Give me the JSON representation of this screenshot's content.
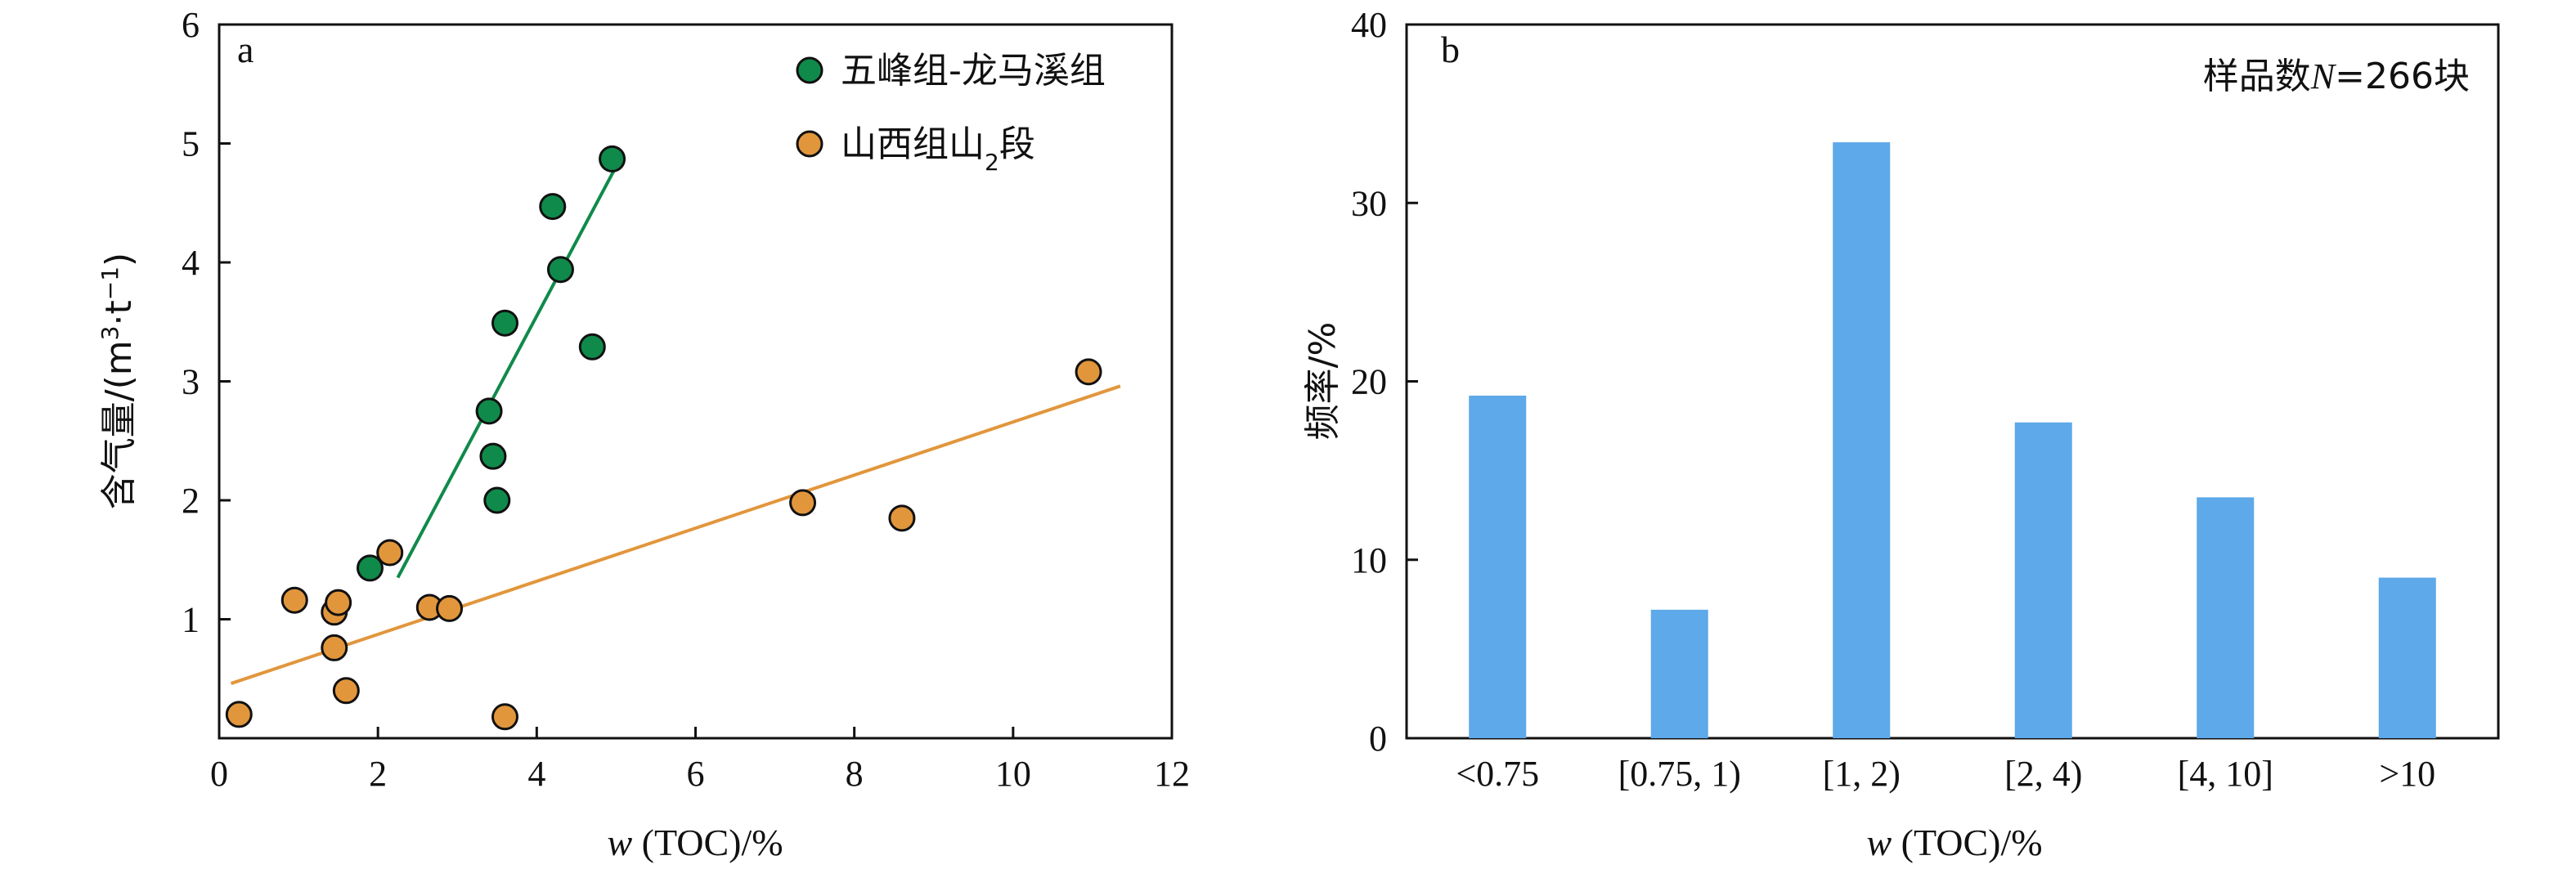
{
  "chart_data": [
    {
      "type": "scatter",
      "panel_label": "a",
      "xlabel_italic": "w",
      "xlabel_rest": " (TOC)/%",
      "ylabel_main": "含气量/(m",
      "ylabel_sup1": "3",
      "ylabel_mid": "·t",
      "ylabel_sup2": "−1",
      "ylabel_end": ")",
      "xlim": [
        0,
        12
      ],
      "ylim": [
        0,
        6
      ],
      "xticks": [
        0,
        2,
        4,
        6,
        8,
        10,
        12
      ],
      "yticks": [
        1,
        2,
        3,
        4,
        5,
        6
      ],
      "y_origin_label": "0",
      "legend_position": "top-right",
      "series": [
        {
          "name": "五峰组-龙马溪组",
          "color": "#0f8a4a",
          "points": [
            [
              1.9,
              1.43
            ],
            [
              3.4,
              2.75
            ],
            [
              3.45,
              2.37
            ],
            [
              3.5,
              2.0
            ],
            [
              3.6,
              3.49
            ],
            [
              4.2,
              4.47
            ],
            [
              4.3,
              3.94
            ],
            [
              4.7,
              3.29
            ],
            [
              4.95,
              4.87
            ]
          ],
          "trendline": [
            [
              2.25,
              1.35
            ],
            [
              5.05,
              4.87
            ]
          ]
        },
        {
          "name_main": "山西组山",
          "name_sub": "2",
          "name_end": "段",
          "color": "#e2963c",
          "points": [
            [
              0.25,
              0.2
            ],
            [
              0.95,
              1.16
            ],
            [
              1.45,
              1.06
            ],
            [
              1.5,
              1.14
            ],
            [
              1.45,
              0.76
            ],
            [
              1.6,
              0.4
            ],
            [
              2.15,
              1.56
            ],
            [
              2.65,
              1.1
            ],
            [
              2.9,
              1.09
            ],
            [
              3.6,
              0.18
            ],
            [
              7.35,
              1.98
            ],
            [
              8.6,
              1.85
            ],
            [
              10.95,
              3.08
            ]
          ],
          "trendline": [
            [
              0.15,
              0.46
            ],
            [
              11.35,
              2.96
            ]
          ]
        }
      ]
    },
    {
      "type": "bar",
      "panel_label": "b",
      "annotation_pre": "样品数",
      "annotation_italic": "N",
      "annotation_post": "=266块",
      "ylabel": "频率/%",
      "xlabel_italic": "w",
      "xlabel_rest": " (TOC)/%",
      "categories": [
        "<0.75",
        "[0.75, 1)",
        "[1, 2)",
        "[2, 4)",
        "[4, 10]",
        ">10"
      ],
      "values": [
        19.2,
        7.2,
        33.4,
        17.7,
        13.5,
        9.0
      ],
      "ylim": [
        0,
        40
      ],
      "yticks": [
        0,
        10,
        20,
        30,
        40
      ],
      "bar_color": "#5da9e9"
    }
  ]
}
